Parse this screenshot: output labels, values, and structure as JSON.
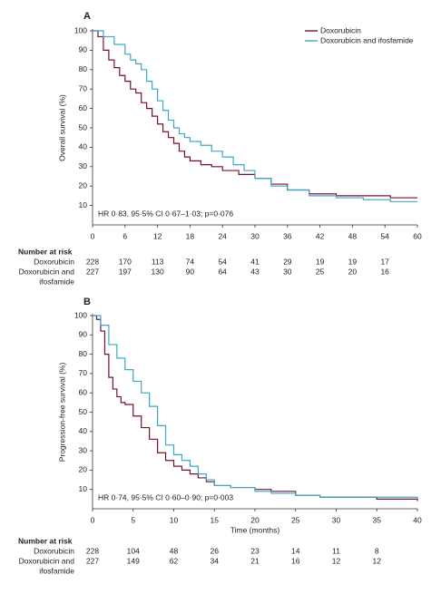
{
  "chart_data": [
    {
      "type": "line",
      "step": true,
      "panel_label": "A",
      "ylabel": "Overall survival (%)",
      "annotation": "HR 0·83, 95·5% CI 0·67–1·03; p=0·076",
      "legend": "upper right",
      "xlim": [
        0,
        60
      ],
      "xticks": [
        0,
        6,
        12,
        18,
        24,
        30,
        36,
        42,
        48,
        54,
        60
      ],
      "ylim": [
        0,
        100
      ],
      "yticks": [
        10,
        20,
        30,
        40,
        50,
        60,
        70,
        80,
        90,
        100
      ],
      "series": [
        {
          "name": "Doxorubicin",
          "color": "#7a1030",
          "x": [
            0,
            1,
            2,
            3,
            4,
            5,
            6,
            7,
            8,
            9,
            10,
            11,
            12,
            13,
            14,
            15,
            16,
            17,
            18,
            20,
            22,
            24,
            27,
            30,
            33,
            36,
            40,
            45,
            50,
            55,
            60
          ],
          "values": [
            100,
            97,
            90,
            85,
            81,
            77,
            74,
            70,
            68,
            63,
            60,
            56,
            52,
            48,
            45,
            42,
            38,
            35,
            33,
            31,
            30,
            28,
            26,
            24,
            21,
            18,
            16,
            15,
            15,
            14,
            14
          ]
        },
        {
          "name": "Doxorubicin and ifosfamide",
          "color": "#3ea7c9",
          "x": [
            0,
            2,
            4,
            6,
            7,
            8,
            9,
            10,
            11,
            12,
            13,
            14,
            15,
            16,
            17,
            18,
            20,
            22,
            24,
            26,
            28,
            30,
            33,
            36,
            40,
            45,
            50,
            55,
            60
          ],
          "values": [
            100,
            97,
            93,
            88,
            85,
            83,
            80,
            74,
            70,
            64,
            59,
            54,
            50,
            47,
            45,
            43,
            41,
            38,
            35,
            31,
            28,
            24,
            20,
            18,
            15,
            14,
            13,
            12,
            12
          ]
        }
      ],
      "risk_table": {
        "title": "Number at risk",
        "rows": [
          {
            "label": [
              "Doxorubicin"
            ],
            "values": [
              228,
              170,
              113,
              74,
              54,
              41,
              29,
              19,
              19,
              17
            ]
          },
          {
            "label": [
              "Doxorubicin and",
              "ifosfamide"
            ],
            "values": [
              227,
              197,
              130,
              90,
              64,
              43,
              30,
              25,
              20,
              16
            ]
          }
        ]
      }
    },
    {
      "type": "line",
      "step": true,
      "panel_label": "B",
      "ylabel": "Progression-free survival (%)",
      "xlabel": "Time (months)",
      "annotation": "HR 0·74, 95·5% CI 0·60–0·90; p=0·003",
      "xlim": [
        0,
        40
      ],
      "xticks": [
        0,
        5,
        10,
        15,
        20,
        25,
        30,
        35,
        40
      ],
      "ylim": [
        0,
        100
      ],
      "yticks": [
        10,
        20,
        30,
        40,
        50,
        60,
        70,
        80,
        90,
        100
      ],
      "series": [
        {
          "color": "#7a1030",
          "x": [
            0,
            0.5,
            1,
            1.5,
            2,
            2.5,
            3,
            3.5,
            4,
            5,
            6,
            7,
            8,
            9,
            10,
            11,
            12,
            13,
            14,
            15,
            17,
            20,
            22,
            25,
            28,
            30,
            35,
            38,
            40
          ],
          "values": [
            100,
            98,
            92,
            80,
            68,
            62,
            58,
            55,
            54,
            48,
            42,
            36,
            29,
            25,
            22,
            20,
            18,
            16,
            14,
            12,
            11,
            10,
            9,
            7,
            6,
            6,
            5,
            5,
            4
          ]
        },
        {
          "color": "#3ea7c9",
          "x": [
            0,
            1,
            2,
            3,
            4,
            5,
            6,
            7,
            8,
            9,
            10,
            11,
            12,
            13,
            14,
            15,
            17,
            20,
            22,
            25,
            28,
            30,
            35,
            40
          ],
          "values": [
            100,
            95,
            85,
            78,
            72,
            66,
            60,
            53,
            43,
            33,
            28,
            25,
            22,
            18,
            15,
            12,
            11,
            9,
            8,
            7,
            6,
            6,
            6,
            5
          ]
        }
      ],
      "risk_table": {
        "title": "Number at risk",
        "rows": [
          {
            "label": [
              "Doxorubicin"
            ],
            "values": [
              228,
              104,
              48,
              26,
              23,
              14,
              11,
              8
            ]
          },
          {
            "label": [
              "Doxorubicin and",
              "ifosfamide"
            ],
            "values": [
              227,
              149,
              62,
              34,
              21,
              16,
              12,
              12
            ]
          }
        ]
      }
    }
  ]
}
